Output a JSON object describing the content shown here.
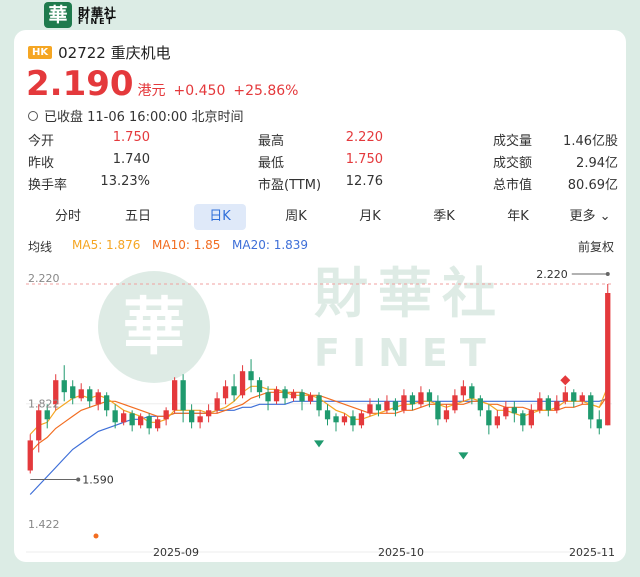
{
  "brand": {
    "logo_char": "華",
    "name_cn": "財華社",
    "name_en": "FINET"
  },
  "stock": {
    "market": "HK",
    "code_name": "02722 重庆机电",
    "price": "2.190",
    "currency": "港元",
    "change": "+0.450",
    "change_pct": "+25.86%",
    "status": "已收盘 11-06 16:00:00 北京时间"
  },
  "stats": [
    {
      "label": "今开",
      "value": "1.750",
      "color": "#e4393c"
    },
    {
      "label": "昨收",
      "value": "1.740",
      "color": "#333333"
    },
    {
      "label": "换手率",
      "value": "13.23%",
      "color": "#333333"
    },
    {
      "label": "最高",
      "value": "2.220",
      "color": "#e4393c"
    },
    {
      "label": "最低",
      "value": "1.750",
      "color": "#e4393c"
    },
    {
      "label": "市盈(TTM)",
      "value": "12.76",
      "color": "#333333"
    },
    {
      "label": "成交量",
      "value": "1.46亿股",
      "color": "#333333"
    },
    {
      "label": "成交额",
      "value": "2.94亿",
      "color": "#333333"
    },
    {
      "label": "总市值",
      "value": "80.69亿",
      "color": "#333333"
    }
  ],
  "tabs": [
    {
      "label": "分时",
      "active": false
    },
    {
      "label": "五日",
      "active": false
    },
    {
      "label": "日K",
      "active": true
    },
    {
      "label": "周K",
      "active": false
    },
    {
      "label": "月K",
      "active": false
    },
    {
      "label": "季K",
      "active": false
    },
    {
      "label": "年K",
      "active": false
    },
    {
      "label": "更多",
      "active": false,
      "icon": "chevron-down-icon"
    }
  ],
  "ma": {
    "label": "均线",
    "ma5": "MA5: 1.876",
    "ma10": "MA10: 1.85",
    "ma20": "MA20: 1.839",
    "adjust": "前复权",
    "colors": {
      "ma5": "#f5a623",
      "ma10": "#f26d21",
      "ma20": "#3e6fd8"
    }
  },
  "chart_data": {
    "type": "candlestick",
    "y_labels": {
      "top": "2.220",
      "mid": "1.822",
      "bottom": "1.422"
    },
    "annotations": {
      "high": "2.220",
      "low": "1.590"
    },
    "x_labels": [
      "2025-09",
      "2025-10",
      "2025-11"
    ],
    "ylim": [
      1.422,
      2.22
    ],
    "colors": {
      "up": "#e4393c",
      "down": "#1f9a6e"
    },
    "candles": [
      [
        1.6,
        1.7,
        1.59,
        1.72
      ],
      [
        1.7,
        1.8,
        1.66,
        1.82
      ],
      [
        1.8,
        1.77,
        1.74,
        1.82
      ],
      [
        1.82,
        1.9,
        1.8,
        1.92
      ],
      [
        1.9,
        1.86,
        1.83,
        1.95
      ],
      [
        1.88,
        1.84,
        1.82,
        1.9
      ],
      [
        1.84,
        1.87,
        1.83,
        1.89
      ],
      [
        1.87,
        1.83,
        1.81,
        1.88
      ],
      [
        1.82,
        1.86,
        1.8,
        1.87
      ],
      [
        1.85,
        1.8,
        1.78,
        1.86
      ],
      [
        1.8,
        1.76,
        1.74,
        1.82
      ],
      [
        1.76,
        1.79,
        1.75,
        1.8
      ],
      [
        1.79,
        1.75,
        1.73,
        1.8
      ],
      [
        1.75,
        1.78,
        1.74,
        1.79
      ],
      [
        1.78,
        1.74,
        1.72,
        1.79
      ],
      [
        1.74,
        1.77,
        1.73,
        1.78
      ],
      [
        1.77,
        1.8,
        1.75,
        1.81
      ],
      [
        1.8,
        1.9,
        1.79,
        1.91
      ],
      [
        1.9,
        1.8,
        1.76,
        1.92
      ],
      [
        1.8,
        1.76,
        1.74,
        1.82
      ],
      [
        1.76,
        1.78,
        1.74,
        1.8
      ],
      [
        1.78,
        1.8,
        1.76,
        1.82
      ],
      [
        1.8,
        1.84,
        1.79,
        1.86
      ],
      [
        1.84,
        1.88,
        1.82,
        1.9
      ],
      [
        1.88,
        1.85,
        1.83,
        1.92
      ],
      [
        1.85,
        1.93,
        1.84,
        1.95
      ],
      [
        1.93,
        1.9,
        1.86,
        1.97
      ],
      [
        1.9,
        1.86,
        1.84,
        1.91
      ],
      [
        1.86,
        1.83,
        1.8,
        1.88
      ],
      [
        1.83,
        1.87,
        1.82,
        1.88
      ],
      [
        1.87,
        1.84,
        1.82,
        1.88
      ],
      [
        1.84,
        1.86,
        1.83,
        1.87
      ],
      [
        1.86,
        1.83,
        1.8,
        1.87
      ],
      [
        1.83,
        1.85,
        1.82,
        1.86
      ],
      [
        1.85,
        1.8,
        1.78,
        1.86
      ],
      [
        1.8,
        1.77,
        1.75,
        1.82
      ],
      [
        1.78,
        1.76,
        1.73,
        1.79
      ],
      [
        1.76,
        1.78,
        1.75,
        1.79
      ],
      [
        1.78,
        1.75,
        1.73,
        1.8
      ],
      [
        1.75,
        1.79,
        1.74,
        1.8
      ],
      [
        1.79,
        1.82,
        1.78,
        1.84
      ],
      [
        1.82,
        1.8,
        1.78,
        1.84
      ],
      [
        1.8,
        1.83,
        1.79,
        1.85
      ],
      [
        1.83,
        1.8,
        1.78,
        1.84
      ],
      [
        1.8,
        1.85,
        1.79,
        1.87
      ],
      [
        1.85,
        1.82,
        1.8,
        1.86
      ],
      [
        1.82,
        1.86,
        1.81,
        1.88
      ],
      [
        1.86,
        1.83,
        1.81,
        1.87
      ],
      [
        1.83,
        1.77,
        1.75,
        1.85
      ],
      [
        1.77,
        1.8,
        1.76,
        1.82
      ],
      [
        1.8,
        1.85,
        1.79,
        1.87
      ],
      [
        1.85,
        1.88,
        1.83,
        1.9
      ],
      [
        1.88,
        1.84,
        1.82,
        1.89
      ],
      [
        1.84,
        1.8,
        1.78,
        1.85
      ],
      [
        1.8,
        1.75,
        1.72,
        1.82
      ],
      [
        1.75,
        1.78,
        1.74,
        1.8
      ],
      [
        1.78,
        1.81,
        1.77,
        1.83
      ],
      [
        1.81,
        1.79,
        1.76,
        1.83
      ],
      [
        1.79,
        1.75,
        1.73,
        1.8
      ],
      [
        1.75,
        1.8,
        1.74,
        1.82
      ],
      [
        1.8,
        1.84,
        1.79,
        1.86
      ],
      [
        1.84,
        1.8,
        1.78,
        1.85
      ],
      [
        1.8,
        1.83,
        1.79,
        1.85
      ],
      [
        1.83,
        1.86,
        1.82,
        1.88
      ],
      [
        1.86,
        1.83,
        1.81,
        1.87
      ],
      [
        1.83,
        1.85,
        1.82,
        1.86
      ],
      [
        1.85,
        1.77,
        1.74,
        1.86
      ],
      [
        1.77,
        1.74,
        1.72,
        1.8
      ],
      [
        1.75,
        2.19,
        1.75,
        2.22
      ]
    ],
    "ma5": [
      1.72,
      1.75,
      1.76,
      1.8,
      1.82,
      1.84,
      1.85,
      1.84,
      1.85,
      1.84,
      1.82,
      1.8,
      1.79,
      1.78,
      1.76,
      1.76,
      1.77,
      1.8,
      1.8,
      1.8,
      1.8,
      1.79,
      1.8,
      1.81,
      1.83,
      1.86,
      1.88,
      1.88,
      1.87,
      1.87,
      1.86,
      1.85,
      1.85,
      1.85,
      1.84,
      1.82,
      1.8,
      1.79,
      1.77,
      1.77,
      1.78,
      1.79,
      1.8,
      1.81,
      1.82,
      1.82,
      1.83,
      1.83,
      1.82,
      1.81,
      1.82,
      1.83,
      1.84,
      1.83,
      1.82,
      1.8,
      1.8,
      1.79,
      1.78,
      1.79,
      1.8,
      1.8,
      1.81,
      1.83,
      1.83,
      1.83,
      1.82,
      1.81,
      1.88
    ],
    "ma10": [
      1.66,
      1.69,
      1.71,
      1.74,
      1.76,
      1.78,
      1.8,
      1.81,
      1.82,
      1.83,
      1.83,
      1.82,
      1.81,
      1.8,
      1.79,
      1.78,
      1.78,
      1.79,
      1.79,
      1.79,
      1.79,
      1.79,
      1.79,
      1.8,
      1.81,
      1.82,
      1.84,
      1.85,
      1.86,
      1.86,
      1.86,
      1.86,
      1.86,
      1.85,
      1.85,
      1.84,
      1.83,
      1.82,
      1.81,
      1.8,
      1.79,
      1.79,
      1.79,
      1.79,
      1.8,
      1.8,
      1.81,
      1.82,
      1.82,
      1.82,
      1.82,
      1.82,
      1.83,
      1.83,
      1.82,
      1.82,
      1.81,
      1.81,
      1.81,
      1.8,
      1.8,
      1.8,
      1.8,
      1.81,
      1.81,
      1.82,
      1.82,
      1.81,
      1.85
    ],
    "ma20": [
      1.52,
      1.55,
      1.58,
      1.61,
      1.64,
      1.67,
      1.69,
      1.71,
      1.73,
      1.74,
      1.75,
      1.76,
      1.77,
      1.77,
      1.78,
      1.78,
      1.78,
      1.79,
      1.79,
      1.79,
      1.79,
      1.79,
      1.8,
      1.8,
      1.8,
      1.81,
      1.81,
      1.82,
      1.82,
      1.82,
      1.82,
      1.83,
      1.83,
      1.83,
      1.83,
      1.83,
      1.83,
      1.83,
      1.83,
      1.83,
      1.83,
      1.83,
      1.83,
      1.83,
      1.83,
      1.83,
      1.83,
      1.83,
      1.83,
      1.83,
      1.83,
      1.83,
      1.83,
      1.83,
      1.83,
      1.83,
      1.83,
      1.83,
      1.83,
      1.83,
      1.83,
      1.83,
      1.83,
      1.83,
      1.83,
      1.83,
      1.83,
      1.83,
      1.84
    ]
  }
}
